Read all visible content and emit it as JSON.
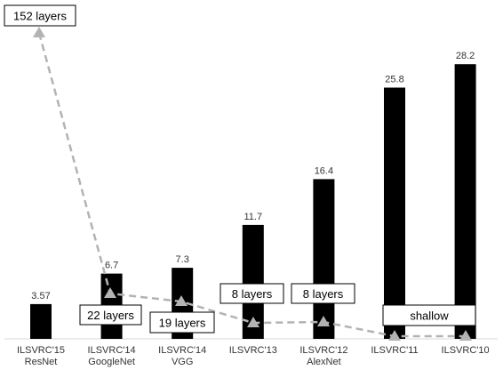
{
  "chart_data": {
    "type": "bar",
    "categories": [
      {
        "line1": "ILSVRC'15",
        "line2": "ResNet"
      },
      {
        "line1": "ILSVRC'14",
        "line2": "GoogleNet"
      },
      {
        "line1": "ILSVRC'14",
        "line2": "VGG"
      },
      {
        "line1": "ILSVRC'13",
        "line2": ""
      },
      {
        "line1": "ILSVRC'12",
        "line2": "AlexNet"
      },
      {
        "line1": "ILSVRC'11",
        "line2": ""
      },
      {
        "line1": "ILSVRC'10",
        "line2": ""
      }
    ],
    "values": [
      3.57,
      6.7,
      7.3,
      11.7,
      16.4,
      25.8,
      28.2
    ],
    "value_labels": [
      "3.57",
      "6.7",
      "7.3",
      "11.7",
      "16.4",
      "25.8",
      "28.2"
    ],
    "ylim": [
      0,
      30
    ],
    "grid": false,
    "bar_color": "#000000",
    "depth_series": {
      "depth": [
        152,
        22,
        19,
        8,
        8,
        0,
        0
      ],
      "labels": [
        "152 layers",
        "22 layers",
        "19 layers",
        "8 layers",
        "8 layers",
        "shallow",
        ""
      ],
      "style": "dashed",
      "marker": "triangle",
      "color": "#b3b3b3"
    }
  }
}
